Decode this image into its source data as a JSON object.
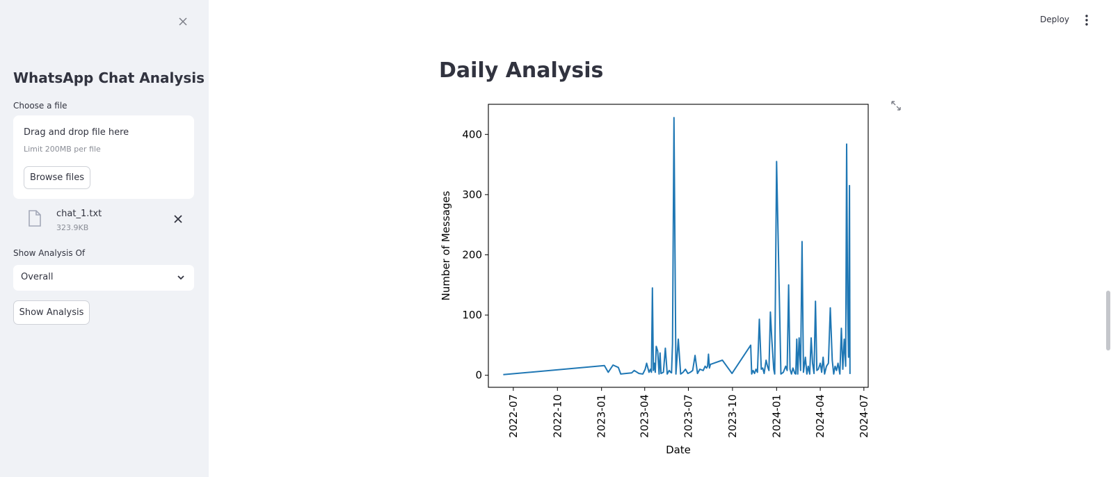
{
  "sidebar": {
    "title": "WhatsApp Chat Analysis",
    "file_label": "Choose a file",
    "dropzone": {
      "title": "Drag and drop file here",
      "limit": "Limit 200MB per file",
      "browse_label": "Browse files"
    },
    "uploaded_file": {
      "name": "chat_1.txt",
      "size": "323.9KB"
    },
    "analysis_label": "Show Analysis Of",
    "analysis_select": {
      "value": "Overall"
    },
    "show_button_label": "Show Analysis"
  },
  "header": {
    "deploy_label": "Deploy"
  },
  "main": {
    "title": "Daily Analysis"
  },
  "colors": {
    "line": "#1f77b4",
    "sidebar_bg": "#f0f2f6"
  },
  "icons": [
    "close-icon",
    "file-icon",
    "remove-file-icon",
    "chevron-down-icon",
    "more-vertical-icon",
    "fullscreen-icon"
  ],
  "chart_data": {
    "type": "line",
    "title": "",
    "xlabel": "Date",
    "ylabel": "Number of Messages",
    "xticks": [
      "2022-07",
      "2022-10",
      "2023-01",
      "2023-04",
      "2023-07",
      "2023-10",
      "2024-01",
      "2024-04",
      "2024-07"
    ],
    "yticks": [
      0,
      100,
      200,
      300,
      400
    ],
    "xlim": [
      "2022-05-10",
      "2024-07-10"
    ],
    "ylim": [
      -20,
      450
    ],
    "grid": false,
    "series": [
      {
        "x": [
          "2022-06-10",
          "2023-01-07",
          "2023-01-15",
          "2023-01-25",
          "2023-02-05",
          "2023-02-10",
          "2023-02-20",
          "2023-03-05",
          "2023-03-10",
          "2023-03-20",
          "2023-03-28",
          "2023-04-02",
          "2023-04-05",
          "2023-04-10",
          "2023-04-13",
          "2023-04-15",
          "2023-04-17",
          "2023-04-19",
          "2023-04-21",
          "2023-04-23",
          "2023-04-25",
          "2023-04-28",
          "2023-05-01",
          "2023-05-03",
          "2023-05-05",
          "2023-05-10",
          "2023-05-14",
          "2023-05-18",
          "2023-05-22",
          "2023-05-25",
          "2023-05-27",
          "2023-05-29",
          "2023-06-01",
          "2023-06-05",
          "2023-06-10",
          "2023-06-15",
          "2023-06-20",
          "2023-06-25",
          "2023-06-30",
          "2023-07-05",
          "2023-07-10",
          "2023-07-15",
          "2023-07-20",
          "2023-07-25",
          "2023-08-01",
          "2023-08-05",
          "2023-08-08",
          "2023-08-10",
          "2023-08-12",
          "2023-08-14",
          "2023-08-16",
          "2023-09-10",
          "2023-09-30",
          "2023-11-08",
          "2023-11-10",
          "2023-11-13",
          "2023-11-16",
          "2023-11-19",
          "2023-11-22",
          "2023-11-26",
          "2023-11-30",
          "2023-12-03",
          "2023-12-06",
          "2023-12-10",
          "2023-12-13",
          "2023-12-16",
          "2023-12-19",
          "2023-12-22",
          "2023-12-26",
          "2023-12-28",
          "2024-01-01",
          "2024-01-10",
          "2024-01-15",
          "2024-01-20",
          "2024-01-23",
          "2024-01-26",
          "2024-01-29",
          "2024-02-01",
          "2024-02-04",
          "2024-02-06",
          "2024-02-08",
          "2024-02-10",
          "2024-02-12",
          "2024-02-14",
          "2024-02-17",
          "2024-02-20",
          "2024-02-23",
          "2024-02-26",
          "2024-03-01",
          "2024-03-04",
          "2024-03-07",
          "2024-03-10",
          "2024-03-13",
          "2024-03-16",
          "2024-03-19",
          "2024-03-22",
          "2024-03-25",
          "2024-03-28",
          "2024-04-01",
          "2024-04-04",
          "2024-04-07",
          "2024-04-10",
          "2024-04-14",
          "2024-04-18",
          "2024-04-22",
          "2024-04-26",
          "2024-04-29",
          "2024-05-02",
          "2024-05-05",
          "2024-05-08",
          "2024-05-12",
          "2024-05-15",
          "2024-05-18",
          "2024-05-21",
          "2024-05-24",
          "2024-05-26",
          "2024-05-28",
          "2024-05-30",
          "2024-06-01",
          "2024-06-02"
        ],
        "y": [
          1,
          16,
          5,
          17,
          13,
          2,
          3,
          4,
          8,
          3,
          2,
          10,
          20,
          5,
          10,
          5,
          145,
          8,
          20,
          5,
          48,
          40,
          2,
          37,
          3,
          5,
          45,
          2,
          8,
          5,
          4,
          52,
          428,
          2,
          60,
          2,
          5,
          10,
          3,
          5,
          8,
          33,
          3,
          10,
          8,
          15,
          12,
          15,
          35,
          12,
          18,
          25,
          3,
          50,
          2,
          8,
          3,
          10,
          5,
          93,
          10,
          12,
          3,
          25,
          15,
          8,
          105,
          60,
          10,
          2,
          355,
          2,
          5,
          15,
          8,
          150,
          10,
          2,
          12,
          8,
          3,
          2,
          60,
          2,
          62,
          8,
          222,
          5,
          30,
          2,
          15,
          2,
          62,
          20,
          3,
          123,
          8,
          10,
          20,
          5,
          30,
          2,
          15,
          20,
          112,
          25,
          2,
          15,
          8,
          20,
          2,
          78,
          10,
          60,
          15,
          384,
          120,
          30,
          315,
          2
        ]
      }
    ]
  }
}
